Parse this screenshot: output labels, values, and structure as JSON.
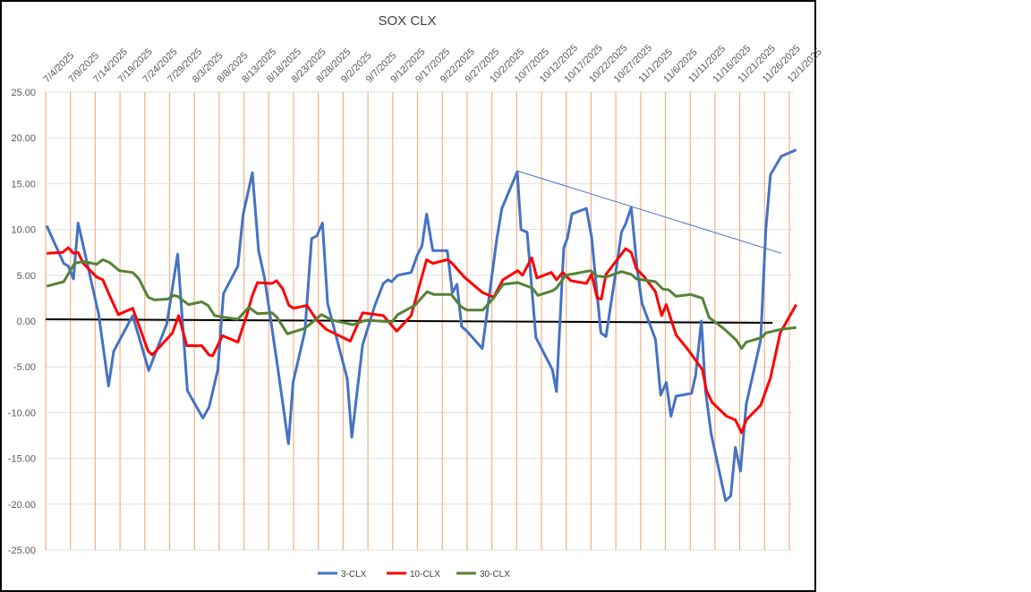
{
  "chart_data": {
    "type": "line",
    "title": "SOX CLX",
    "xlabel": "",
    "ylabel": "",
    "x_unit": "days since 7/4/2025",
    "ylim": [
      -25,
      25
    ],
    "ytick_step": 5,
    "y_ticks": [
      "25.00",
      "20.00",
      "15.00",
      "10.00",
      "5.00",
      "0.00",
      "-5.00",
      "-10.00",
      "-15.00",
      "-20.00",
      "-25.00"
    ],
    "x_ticks": [
      "7/4/2025",
      "7/9/2025",
      "7/14/2025",
      "7/19/2025",
      "7/24/2025",
      "7/29/2025",
      "8/3/2025",
      "8/8/2025",
      "8/13/2025",
      "8/18/2025",
      "8/23/2025",
      "8/28/2025",
      "9/2/2025",
      "9/7/2025",
      "9/12/2025",
      "9/17/2025",
      "9/22/2025",
      "9/27/2025",
      "10/2/2025",
      "10/7/2025",
      "10/12/2025",
      "10/17/2025",
      "10/22/2025",
      "10/27/2025",
      "11/1/2025",
      "11/6/2025",
      "11/11/2025",
      "11/16/2025",
      "11/21/2025",
      "11/26/2025",
      "12/1/2025"
    ],
    "grid": true,
    "legend_position": "bottom",
    "series": [
      {
        "name": "3-CLX",
        "color": "#4472c4",
        "points": [
          [
            0.2,
            10.4
          ],
          [
            3.5,
            6.3
          ],
          [
            4.4,
            6.0
          ],
          [
            5.4,
            4.6
          ],
          [
            6.3,
            10.7
          ],
          [
            10.3,
            0.7
          ],
          [
            12.2,
            -7.1
          ],
          [
            13.2,
            -3.3
          ],
          [
            16.9,
            0.6
          ],
          [
            20.0,
            -5.4
          ],
          [
            23.5,
            -0.3
          ],
          [
            25.6,
            7.3
          ],
          [
            27.5,
            -7.6
          ],
          [
            30.5,
            -10.6
          ],
          [
            31.7,
            -9.4
          ],
          [
            33.4,
            -5.3
          ],
          [
            34.5,
            3.0
          ],
          [
            37.3,
            6.0
          ],
          [
            38.3,
            11.6
          ],
          [
            40.1,
            16.2
          ],
          [
            41.3,
            7.7
          ],
          [
            42.5,
            4.6
          ],
          [
            45.0,
            -5.0
          ],
          [
            47.1,
            -13.4
          ],
          [
            48.0,
            -6.7
          ],
          [
            50.3,
            -1.1
          ],
          [
            51.6,
            9.0
          ],
          [
            52.6,
            9.3
          ],
          [
            53.7,
            10.7
          ],
          [
            54.7,
            1.9
          ],
          [
            58.5,
            -6.3
          ],
          [
            59.4,
            -12.7
          ],
          [
            61.5,
            -2.6
          ],
          [
            63.8,
            1.6
          ],
          [
            65.5,
            4.1
          ],
          [
            66.4,
            4.5
          ],
          [
            67.1,
            4.3
          ],
          [
            68.3,
            5.0
          ],
          [
            70.9,
            5.3
          ],
          [
            72.1,
            7.2
          ],
          [
            73.0,
            8.2
          ],
          [
            73.9,
            11.7
          ],
          [
            75.1,
            7.7
          ],
          [
            77.9,
            7.7
          ],
          [
            78.9,
            3.1
          ],
          [
            79.8,
            4.0
          ],
          [
            80.7,
            -0.6
          ],
          [
            81.7,
            -1.1
          ],
          [
            84.7,
            -3.0
          ],
          [
            87.5,
            8.9
          ],
          [
            88.5,
            12.3
          ],
          [
            91.5,
            16.3
          ],
          [
            92.2,
            10.0
          ],
          [
            93.4,
            9.7
          ],
          [
            95.1,
            -1.8
          ],
          [
            98.3,
            -5.3
          ],
          [
            99.1,
            -7.7
          ],
          [
            100.5,
            8.0
          ],
          [
            101.2,
            9.0
          ],
          [
            102.1,
            11.7
          ],
          [
            104.9,
            12.3
          ],
          [
            105.9,
            9.2
          ],
          [
            107.7,
            -1.3
          ],
          [
            108.7,
            -1.7
          ],
          [
            110.5,
            5.0
          ],
          [
            111.7,
            9.7
          ],
          [
            112.5,
            10.6
          ],
          [
            113.6,
            12.4
          ],
          [
            114.8,
            5.5
          ],
          [
            115.7,
            1.9
          ],
          [
            118.3,
            -2.0
          ],
          [
            119.3,
            -8.1
          ],
          [
            120.4,
            -6.7
          ],
          [
            121.3,
            -10.4
          ],
          [
            122.3,
            -8.2
          ],
          [
            125.3,
            -7.9
          ],
          [
            126.1,
            -5.9
          ],
          [
            127.2,
            0.0
          ],
          [
            128.0,
            -7.6
          ],
          [
            129.1,
            -12.3
          ],
          [
            131.9,
            -19.6
          ],
          [
            132.9,
            -19.1
          ],
          [
            133.8,
            -13.8
          ],
          [
            134.8,
            -16.4
          ],
          [
            135.9,
            -9.1
          ],
          [
            138.7,
            -2.1
          ],
          [
            139.7,
            10.0
          ],
          [
            140.6,
            16.0
          ],
          [
            142.7,
            18.0
          ],
          [
            145.6,
            18.7
          ]
        ]
      },
      {
        "name": "10-CLX",
        "color": "#ff0000",
        "points": [
          [
            0.2,
            7.4
          ],
          [
            3.3,
            7.5
          ],
          [
            4.4,
            8.0
          ],
          [
            5.4,
            7.4
          ],
          [
            6.3,
            7.5
          ],
          [
            7.3,
            6.3
          ],
          [
            9.9,
            4.8
          ],
          [
            11.1,
            4.5
          ],
          [
            12.4,
            2.8
          ],
          [
            14.1,
            0.7
          ],
          [
            16.9,
            1.4
          ],
          [
            19.9,
            -3.3
          ],
          [
            20.7,
            -3.7
          ],
          [
            24.6,
            -1.3
          ],
          [
            25.8,
            0.6
          ],
          [
            27.4,
            -2.7
          ],
          [
            30.3,
            -2.7
          ],
          [
            31.7,
            -3.7
          ],
          [
            32.4,
            -3.8
          ],
          [
            34.3,
            -1.6
          ],
          [
            37.3,
            -2.3
          ],
          [
            39.0,
            0.6
          ],
          [
            40.1,
            2.8
          ],
          [
            41.1,
            4.2
          ],
          [
            43.9,
            4.1
          ],
          [
            44.8,
            4.4
          ],
          [
            46.0,
            3.5
          ],
          [
            47.2,
            1.7
          ],
          [
            48.1,
            1.4
          ],
          [
            50.7,
            1.7
          ],
          [
            52.6,
            0.1
          ],
          [
            54.4,
            -0.9
          ],
          [
            59.1,
            -2.2
          ],
          [
            61.5,
            0.9
          ],
          [
            65.5,
            0.6
          ],
          [
            68.1,
            -1.1
          ],
          [
            70.9,
            0.6
          ],
          [
            73.9,
            6.7
          ],
          [
            75.1,
            6.3
          ],
          [
            77.9,
            6.7
          ],
          [
            78.7,
            6.4
          ],
          [
            81.2,
            4.8
          ],
          [
            84.8,
            3.1
          ],
          [
            86.9,
            2.6
          ],
          [
            88.7,
            4.5
          ],
          [
            91.6,
            5.5
          ],
          [
            92.5,
            5.0
          ],
          [
            94.3,
            6.9
          ],
          [
            95.3,
            4.7
          ],
          [
            98.1,
            5.3
          ],
          [
            99.1,
            4.5
          ],
          [
            100.3,
            5.3
          ],
          [
            101.9,
            4.4
          ],
          [
            104.9,
            4.1
          ],
          [
            105.9,
            5.1
          ],
          [
            107.0,
            2.5
          ],
          [
            107.8,
            2.4
          ],
          [
            108.7,
            5.1
          ],
          [
            112.5,
            7.9
          ],
          [
            113.6,
            7.5
          ],
          [
            114.6,
            5.7
          ],
          [
            116.0,
            4.9
          ],
          [
            118.3,
            3.2
          ],
          [
            119.5,
            0.6
          ],
          [
            120.4,
            1.8
          ],
          [
            122.3,
            -1.5
          ],
          [
            124.7,
            -3.2
          ],
          [
            127.4,
            -5.3
          ],
          [
            128.2,
            -7.6
          ],
          [
            129.3,
            -8.9
          ],
          [
            132.1,
            -10.4
          ],
          [
            133.8,
            -10.8
          ],
          [
            135.0,
            -12.2
          ],
          [
            135.9,
            -10.8
          ],
          [
            138.7,
            -9.2
          ],
          [
            140.6,
            -6.2
          ],
          [
            142.5,
            -1.3
          ],
          [
            145.6,
            1.8
          ]
        ]
      },
      {
        "name": "30-CLX",
        "color": "#548235",
        "points": [
          [
            0.2,
            3.8
          ],
          [
            3.5,
            4.3
          ],
          [
            5.6,
            6.3
          ],
          [
            7.3,
            6.5
          ],
          [
            9.9,
            6.2
          ],
          [
            11.1,
            6.7
          ],
          [
            12.4,
            6.4
          ],
          [
            14.3,
            5.5
          ],
          [
            16.9,
            5.3
          ],
          [
            18.1,
            4.6
          ],
          [
            19.9,
            2.6
          ],
          [
            21.1,
            2.3
          ],
          [
            23.7,
            2.4
          ],
          [
            24.9,
            2.8
          ],
          [
            25.6,
            2.7
          ],
          [
            27.7,
            1.8
          ],
          [
            30.3,
            2.1
          ],
          [
            31.5,
            1.7
          ],
          [
            32.8,
            0.6
          ],
          [
            34.7,
            0.4
          ],
          [
            37.3,
            0.2
          ],
          [
            39.4,
            1.5
          ],
          [
            41.1,
            0.8
          ],
          [
            43.9,
            0.9
          ],
          [
            44.9,
            0.4
          ],
          [
            46.9,
            -1.4
          ],
          [
            50.3,
            -0.8
          ],
          [
            53.5,
            0.7
          ],
          [
            55.6,
            0.1
          ],
          [
            59.6,
            -0.4
          ],
          [
            62.2,
            0.1
          ],
          [
            67.2,
            -0.1
          ],
          [
            68.3,
            0.7
          ],
          [
            71.6,
            1.7
          ],
          [
            74.0,
            3.2
          ],
          [
            75.3,
            2.9
          ],
          [
            78.7,
            2.9
          ],
          [
            80.5,
            1.6
          ],
          [
            81.7,
            1.2
          ],
          [
            84.8,
            1.2
          ],
          [
            86.9,
            2.5
          ],
          [
            88.7,
            4.0
          ],
          [
            91.6,
            4.2
          ],
          [
            94.4,
            3.6
          ],
          [
            95.5,
            2.8
          ],
          [
            98.3,
            3.3
          ],
          [
            99.1,
            3.6
          ],
          [
            100.9,
            5.0
          ],
          [
            105.7,
            5.5
          ],
          [
            107.0,
            4.9
          ],
          [
            108.7,
            4.8
          ],
          [
            111.7,
            5.4
          ],
          [
            113.6,
            5.1
          ],
          [
            114.6,
            4.6
          ],
          [
            118.3,
            4.3
          ],
          [
            119.7,
            3.5
          ],
          [
            120.9,
            3.4
          ],
          [
            122.3,
            2.7
          ],
          [
            125.1,
            2.9
          ],
          [
            127.4,
            2.5
          ],
          [
            128.7,
            0.4
          ],
          [
            131.7,
            -0.9
          ],
          [
            134.0,
            -2.1
          ],
          [
            135.0,
            -3.0
          ],
          [
            135.9,
            -2.3
          ],
          [
            138.9,
            -1.8
          ],
          [
            139.7,
            -1.3
          ],
          [
            142.7,
            -0.9
          ],
          [
            145.6,
            -0.7
          ]
        ]
      }
    ],
    "reference_lines": [
      {
        "name": "zero-line",
        "color": "#000000",
        "points": [
          [
            0.0,
            0.2
          ],
          [
            141.0,
            -0.2
          ]
        ]
      },
      {
        "name": "trend-line",
        "color": "#4472c4",
        "points": [
          [
            91.5,
            16.4
          ],
          [
            142.7,
            7.4
          ]
        ]
      }
    ]
  }
}
